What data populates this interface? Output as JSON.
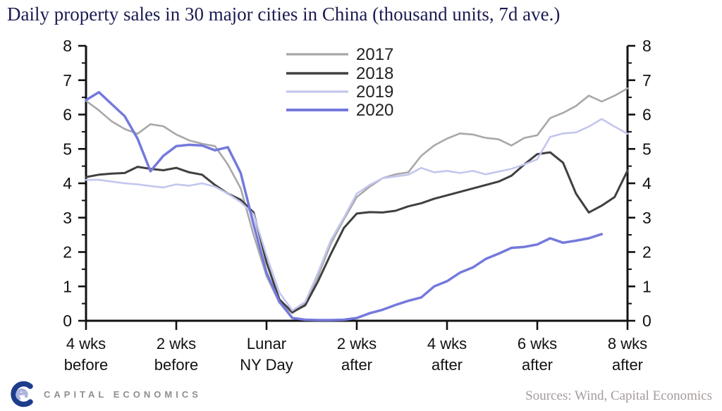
{
  "title": "Daily property sales in 30 major cities in China (thousand units, 7d ave.)",
  "footer": {
    "logo_text": "CAPITAL ECONOMICS",
    "sources": "Sources: Wind, Capital Economics"
  },
  "colors": {
    "title_navy": "#1b1b52",
    "axis_black": "#111111",
    "logo_dark_blue": "#1e3c8c",
    "logo_light_blue": "#aab4dd",
    "logo_gray": "#8f8f8f",
    "sources_gray": "#a69a9b"
  },
  "chart_data": {
    "type": "line",
    "title": "Daily property sales in 30 major cities in China (thousand units, 7d ave.)",
    "xlabel": "",
    "ylabel": "thousand units",
    "x_unit": "days relative to Lunar New Year Day",
    "ylim": [
      0,
      8
    ],
    "y_ticks": [
      0,
      1,
      2,
      3,
      4,
      5,
      6,
      7,
      8
    ],
    "y_minor_tick_step": 0.5,
    "grid": false,
    "legend_position": "top-center-left",
    "dual_y_axis": true,
    "x_tick_positions": [
      -28,
      -14,
      0,
      14,
      28,
      42,
      56
    ],
    "x_tick_labels": [
      [
        "4 wks",
        "before"
      ],
      [
        "2 wks",
        "before"
      ],
      [
        "Lunar",
        "NY Day"
      ],
      [
        "2 wks",
        "after"
      ],
      [
        "4 wks",
        "after"
      ],
      [
        "6 wks",
        "after"
      ],
      [
        "8 wks",
        "after"
      ]
    ],
    "x": [
      -28,
      -26,
      -24,
      -22,
      -20,
      -18,
      -16,
      -14,
      -12,
      -10,
      -8,
      -6,
      -4,
      -2,
      0,
      2,
      4,
      6,
      8,
      10,
      12,
      14,
      16,
      18,
      20,
      22,
      24,
      26,
      28,
      30,
      32,
      34,
      36,
      38,
      40,
      42,
      44,
      46,
      48,
      50,
      52,
      54,
      56
    ],
    "series": [
      {
        "name": "2017",
        "color": "#a8a8a8",
        "width": 2.6,
        "values": [
          6.4,
          6.12,
          5.8,
          5.58,
          5.44,
          5.72,
          5.66,
          5.42,
          5.25,
          5.15,
          5.08,
          4.55,
          3.85,
          2.5,
          1.3,
          0.52,
          0.22,
          0.5,
          1.3,
          2.25,
          2.95,
          3.6,
          3.9,
          4.15,
          4.26,
          4.32,
          4.8,
          5.1,
          5.3,
          5.45,
          5.42,
          5.32,
          5.28,
          5.1,
          5.32,
          5.4,
          5.9,
          6.05,
          6.25,
          6.55,
          6.38,
          6.55,
          6.76
        ]
      },
      {
        "name": "2018",
        "color": "#404040",
        "width": 3.0,
        "values": [
          4.18,
          4.25,
          4.28,
          4.3,
          4.48,
          4.42,
          4.38,
          4.45,
          4.32,
          4.25,
          3.95,
          3.7,
          3.52,
          3.15,
          1.7,
          0.62,
          0.25,
          0.45,
          1.15,
          1.95,
          2.7,
          3.12,
          3.16,
          3.15,
          3.2,
          3.33,
          3.42,
          3.55,
          3.65,
          3.75,
          3.85,
          3.95,
          4.05,
          4.22,
          4.55,
          4.85,
          4.9,
          4.6,
          3.7,
          3.15,
          3.35,
          3.6,
          4.37
        ]
      },
      {
        "name": "2019",
        "color": "#c3c6ee",
        "width": 2.6,
        "values": [
          4.1,
          4.1,
          4.05,
          4.0,
          3.97,
          3.92,
          3.88,
          3.97,
          3.93,
          4.0,
          3.9,
          3.7,
          3.45,
          3.1,
          1.9,
          0.82,
          0.3,
          0.55,
          1.4,
          2.35,
          3.0,
          3.7,
          3.95,
          4.15,
          4.2,
          4.25,
          4.45,
          4.32,
          4.36,
          4.3,
          4.36,
          4.26,
          4.34,
          4.42,
          4.55,
          4.7,
          5.35,
          5.45,
          5.48,
          5.65,
          5.87,
          5.65,
          5.44
        ]
      },
      {
        "name": "2020",
        "color": "#7479dc",
        "width": 3.5,
        "values": [
          6.42,
          6.65,
          6.3,
          5.95,
          5.3,
          4.35,
          4.8,
          5.08,
          5.12,
          5.1,
          4.96,
          5.05,
          4.3,
          2.8,
          1.4,
          0.55,
          0.08,
          0.03,
          0.02,
          0.02,
          0.03,
          0.08,
          0.22,
          0.32,
          0.46,
          0.58,
          0.68,
          1.0,
          1.15,
          1.4,
          1.55,
          1.8,
          1.95,
          2.12,
          2.15,
          2.22,
          2.4,
          2.27,
          2.33,
          2.4,
          2.52,
          null,
          null
        ]
      }
    ]
  }
}
